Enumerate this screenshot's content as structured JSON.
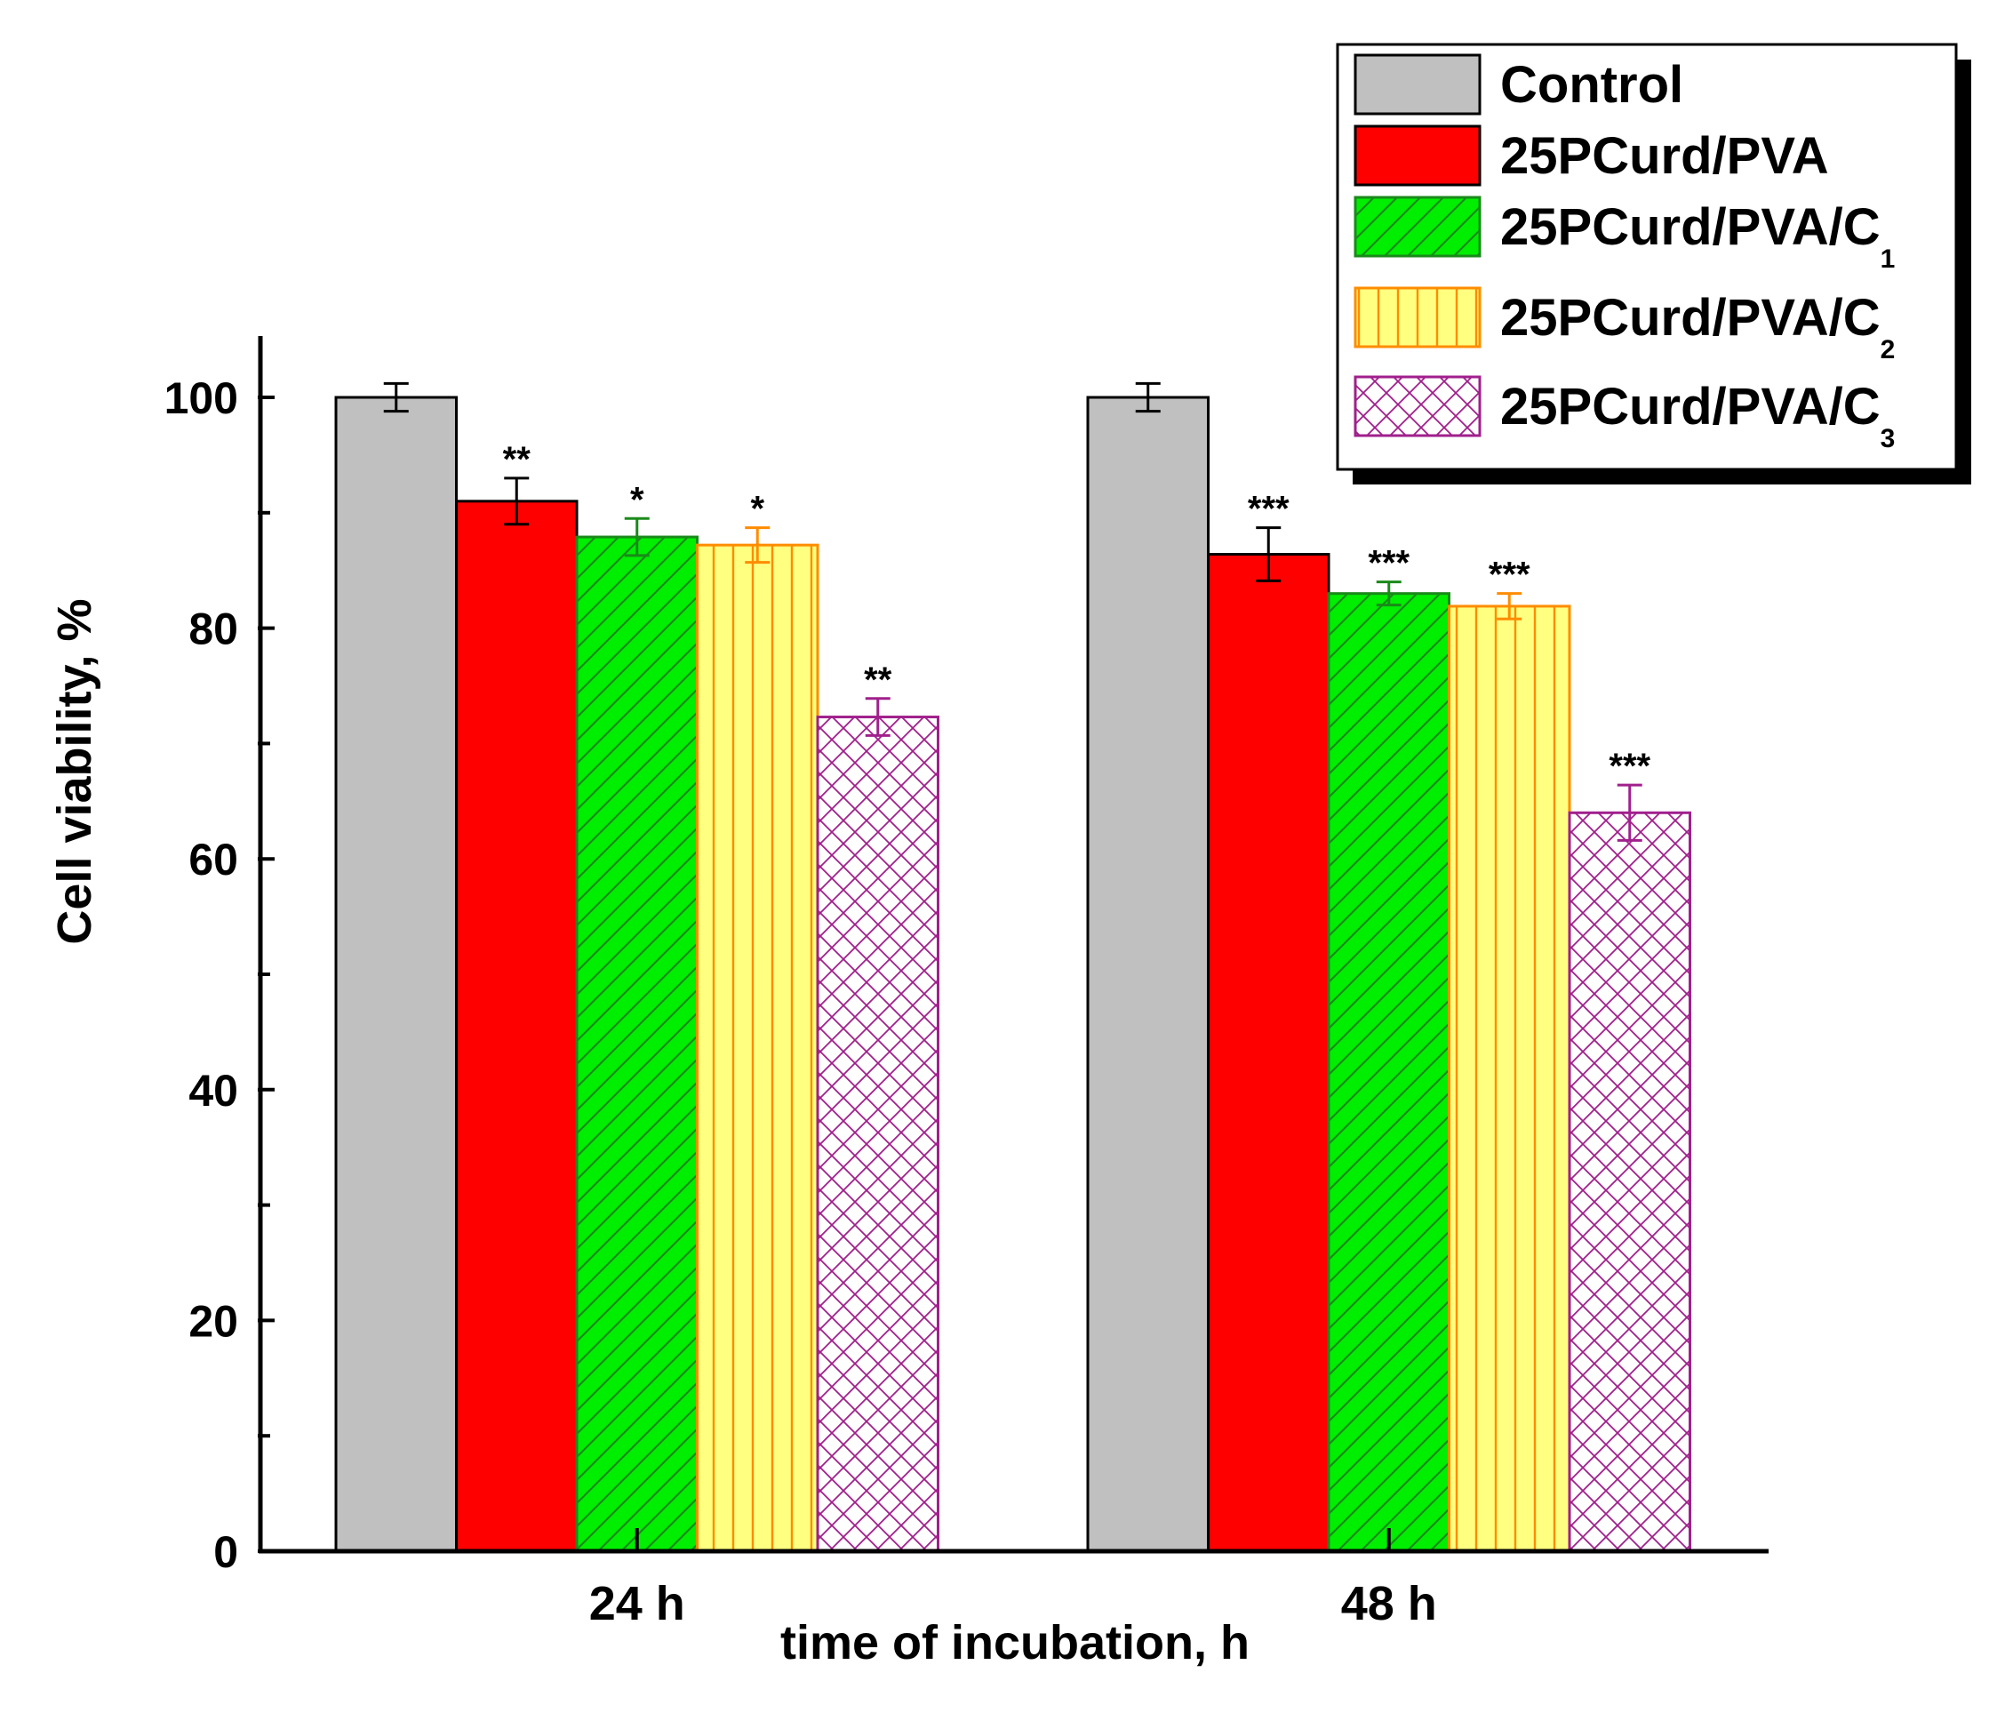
{
  "chart_data": {
    "type": "bar",
    "title": "",
    "xlabel": "time of incubation, h",
    "ylabel": "Cell viability, %",
    "ylim": [
      0,
      105
    ],
    "y_major_ticks": [
      0,
      20,
      40,
      60,
      80,
      100
    ],
    "y_minor_ticks": [
      10,
      30,
      50,
      70,
      90
    ],
    "categories": [
      "24 h",
      "48 h"
    ],
    "legend_position": "top-right",
    "series": [
      {
        "name": "Control",
        "name_main": "Control",
        "name_sub": "",
        "color": "#c0c0c0",
        "stroke": "#000000",
        "pattern": "solid",
        "values": [
          100,
          100
        ],
        "errors": [
          1.2,
          1.2
        ],
        "significance": [
          "",
          ""
        ]
      },
      {
        "name": "25PCurd/PVA",
        "name_main": "25PCurd/PVA",
        "name_sub": "",
        "color": "#ff0000",
        "stroke": "#000000",
        "pattern": "solid",
        "values": [
          91,
          86.4
        ],
        "errors": [
          2.0,
          2.3
        ],
        "significance": [
          "**",
          "***"
        ]
      },
      {
        "name": "25PCurd/PVA/C1",
        "name_main": "25PCurd/PVA/C",
        "name_sub": "1",
        "color": "#00ee00",
        "stroke": "#1a8a1a",
        "pattern": "diagonal",
        "values": [
          87.9,
          83
        ],
        "errors": [
          1.6,
          1.0
        ],
        "significance": [
          "*",
          "***"
        ]
      },
      {
        "name": "25PCurd/PVA/C2",
        "name_main": "25PCurd/PVA/C",
        "name_sub": "2",
        "color": "#ffff80",
        "stroke": "#ff8c00",
        "pattern": "vertical",
        "values": [
          87.2,
          81.9
        ],
        "errors": [
          1.5,
          1.1
        ],
        "significance": [
          "*",
          "***"
        ]
      },
      {
        "name": "25PCurd/PVA/C3",
        "name_main": "25PCurd/PVA/C",
        "name_sub": "3",
        "color": "#ffffff",
        "stroke": "#a0208c",
        "pattern": "crosshatch",
        "values": [
          72.3,
          64
        ],
        "errors": [
          1.6,
          2.4
        ],
        "significance": [
          "**",
          "***"
        ]
      }
    ]
  }
}
